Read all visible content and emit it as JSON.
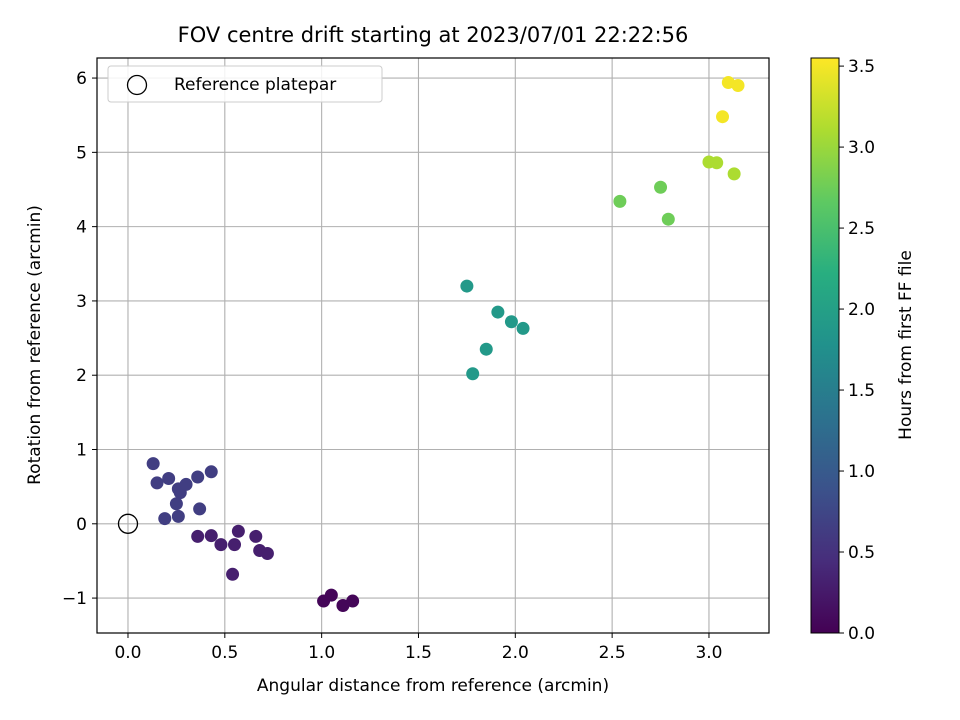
{
  "chart_data": {
    "type": "scatter",
    "title": "FOV centre drift starting at 2023/07/01 22:22:56",
    "xlabel": "Angular distance from reference (arcmin)",
    "ylabel": "Rotation from reference (arcmin)",
    "xlim": [
      -0.16,
      3.31
    ],
    "ylim": [
      -1.47,
      6.27
    ],
    "xticks": [
      "0.0",
      "0.5",
      "1.0",
      "1.5",
      "2.0",
      "2.5",
      "3.0"
    ],
    "yticks": [
      "−1",
      "0",
      "1",
      "2",
      "3",
      "4",
      "5",
      "6"
    ],
    "grid": true,
    "legend": {
      "label": "Reference platepar",
      "placement": "top-left"
    },
    "reference_point": {
      "x": 0.0,
      "y": 0.0
    },
    "colorbar": {
      "label": "Hours from first FF file",
      "range": [
        0.0,
        3.55
      ],
      "colormap": "viridis",
      "ticks": [
        "0.0",
        "0.5",
        "1.0",
        "1.5",
        "2.0",
        "2.5",
        "3.0",
        "3.5"
      ]
    },
    "points": [
      {
        "x": 1.01,
        "y": -1.04,
        "hours": 0.05
      },
      {
        "x": 1.05,
        "y": -0.96,
        "hours": 0.05
      },
      {
        "x": 1.11,
        "y": -1.1,
        "hours": 0.05
      },
      {
        "x": 1.16,
        "y": -1.04,
        "hours": 0.05
      },
      {
        "x": 0.36,
        "y": -0.17,
        "hours": 0.3
      },
      {
        "x": 0.43,
        "y": -0.16,
        "hours": 0.3
      },
      {
        "x": 0.48,
        "y": -0.28,
        "hours": 0.3
      },
      {
        "x": 0.55,
        "y": -0.28,
        "hours": 0.3
      },
      {
        "x": 0.57,
        "y": -0.1,
        "hours": 0.3
      },
      {
        "x": 0.66,
        "y": -0.17,
        "hours": 0.3
      },
      {
        "x": 0.68,
        "y": -0.36,
        "hours": 0.3
      },
      {
        "x": 0.72,
        "y": -0.4,
        "hours": 0.3
      },
      {
        "x": 0.54,
        "y": -0.68,
        "hours": 0.3
      },
      {
        "x": 0.19,
        "y": 0.07,
        "hours": 0.65
      },
      {
        "x": 0.26,
        "y": 0.1,
        "hours": 0.65
      },
      {
        "x": 0.25,
        "y": 0.27,
        "hours": 0.65
      },
      {
        "x": 0.27,
        "y": 0.42,
        "hours": 0.65
      },
      {
        "x": 0.26,
        "y": 0.47,
        "hours": 0.65
      },
      {
        "x": 0.3,
        "y": 0.53,
        "hours": 0.65
      },
      {
        "x": 0.15,
        "y": 0.55,
        "hours": 0.65
      },
      {
        "x": 0.21,
        "y": 0.61,
        "hours": 0.65
      },
      {
        "x": 0.36,
        "y": 0.63,
        "hours": 0.65
      },
      {
        "x": 0.43,
        "y": 0.7,
        "hours": 0.65
      },
      {
        "x": 0.13,
        "y": 0.81,
        "hours": 0.65
      },
      {
        "x": 0.37,
        "y": 0.2,
        "hours": 0.65
      },
      {
        "x": 1.75,
        "y": 3.2,
        "hours": 1.9
      },
      {
        "x": 1.91,
        "y": 2.85,
        "hours": 1.9
      },
      {
        "x": 1.98,
        "y": 2.72,
        "hours": 1.9
      },
      {
        "x": 2.04,
        "y": 2.63,
        "hours": 1.9
      },
      {
        "x": 1.85,
        "y": 2.35,
        "hours": 1.9
      },
      {
        "x": 1.78,
        "y": 2.02,
        "hours": 1.9
      },
      {
        "x": 2.54,
        "y": 4.34,
        "hours": 2.75
      },
      {
        "x": 2.75,
        "y": 4.53,
        "hours": 2.75
      },
      {
        "x": 2.79,
        "y": 4.1,
        "hours": 2.75
      },
      {
        "x": 3.0,
        "y": 4.87,
        "hours": 3.1
      },
      {
        "x": 3.04,
        "y": 4.86,
        "hours": 3.1
      },
      {
        "x": 3.13,
        "y": 4.71,
        "hours": 3.1
      },
      {
        "x": 3.07,
        "y": 5.48,
        "hours": 3.5
      },
      {
        "x": 3.1,
        "y": 5.94,
        "hours": 3.5
      },
      {
        "x": 3.15,
        "y": 5.9,
        "hours": 3.5
      }
    ]
  }
}
